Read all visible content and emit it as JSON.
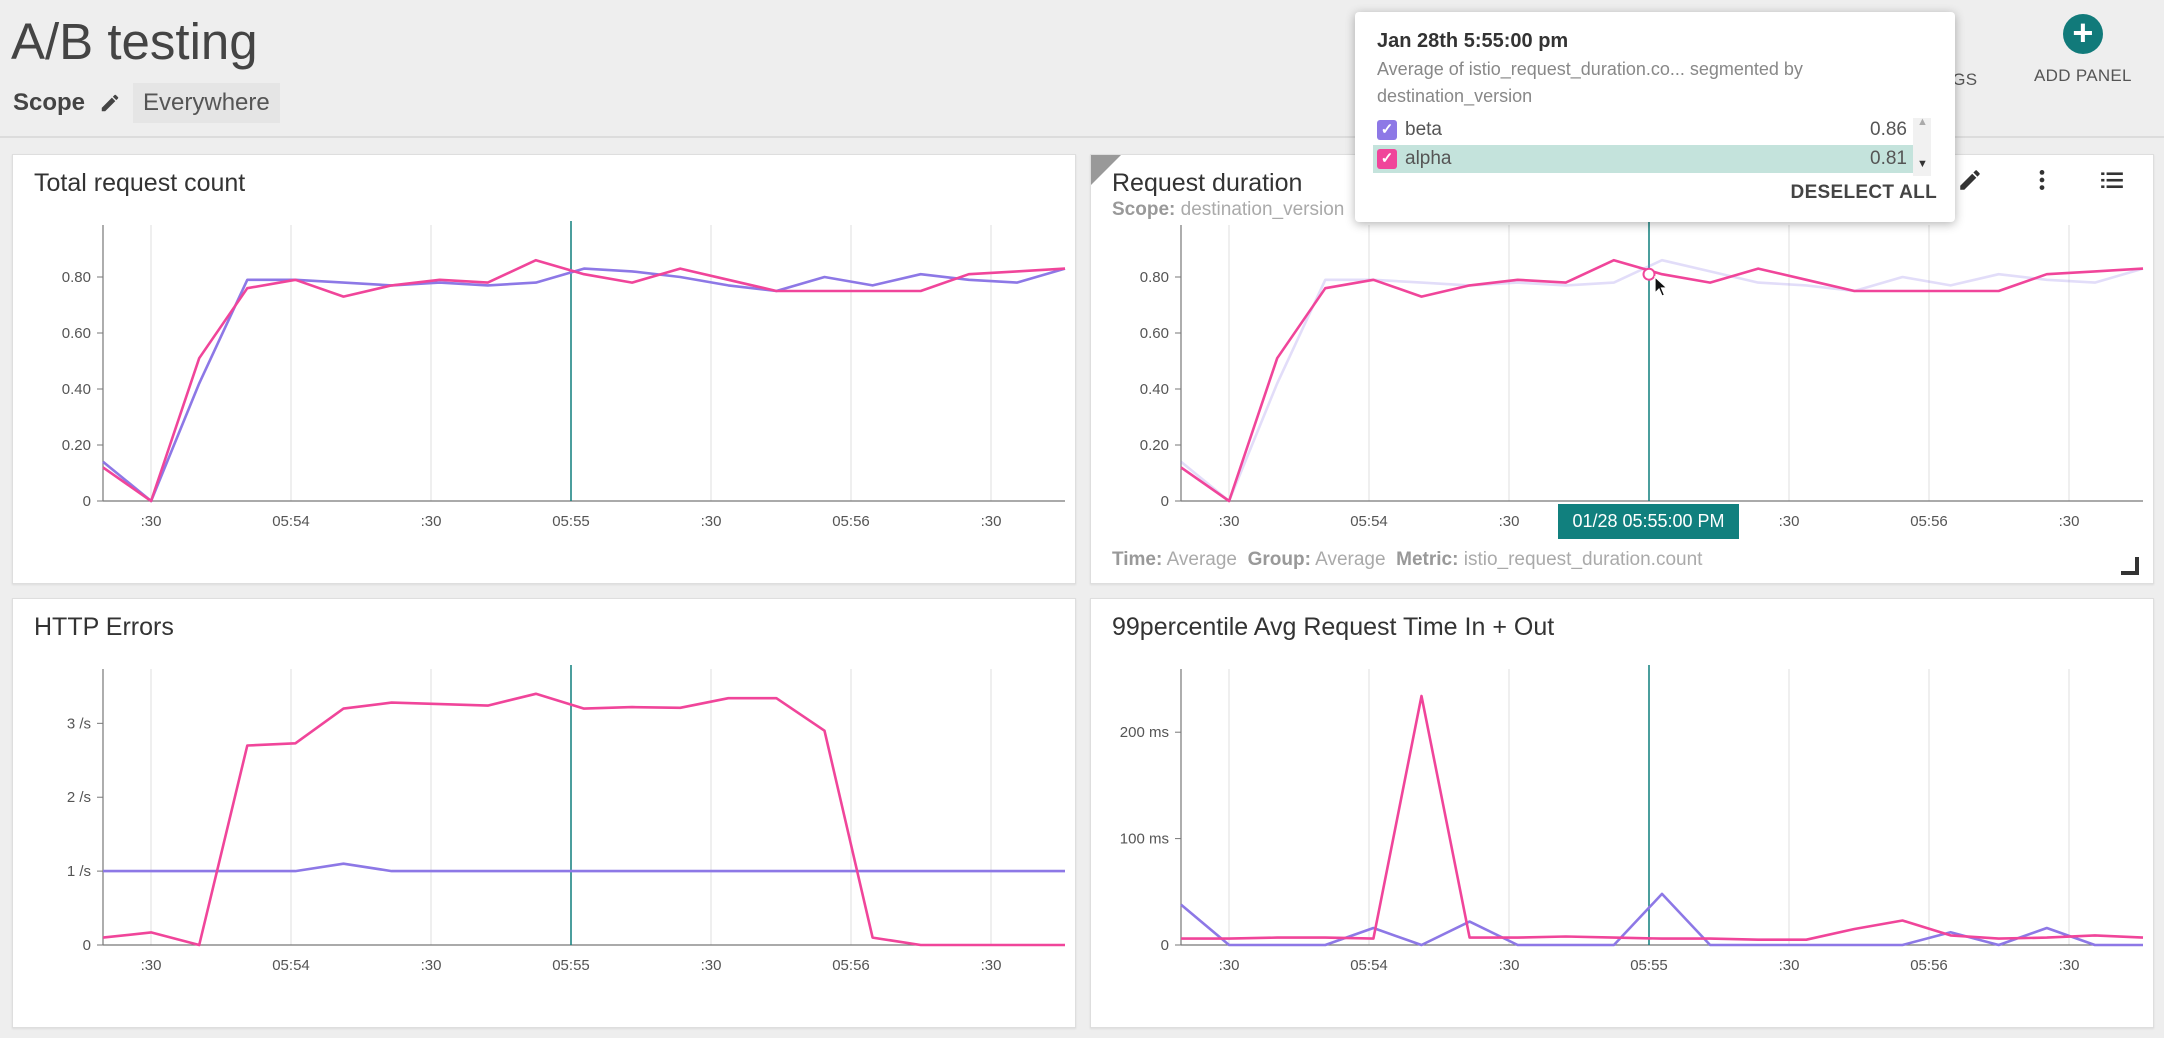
{
  "header": {
    "title": "A/B testing",
    "scope_label": "Scope",
    "scope_value": "Everywhere",
    "settings_label": "SETTINGS",
    "add_panel_label": "ADD PANEL",
    "add_icon": "+"
  },
  "colors": {
    "alpha": "#f0459a",
    "beta": "#8d78e6",
    "accent": "#117a7a",
    "crosshair": "#11807e"
  },
  "panels": {
    "total": {
      "title": "Total request count"
    },
    "duration": {
      "title": "Request duration",
      "scope_label": "Scope:",
      "scope_value": "destination_version",
      "time_label": "Time:",
      "time_value": "Average",
      "group_label": "Group:",
      "group_value": "Average",
      "metric_label": "Metric:",
      "metric_value": "istio_request_duration.count",
      "time_badge": "01/28 05:55:00 PM"
    },
    "errors": {
      "title": "HTTP Errors"
    },
    "p99": {
      "title": "99percentile Avg Request Time In + Out"
    }
  },
  "tooltip": {
    "title": "Jan 28th 5:55:00 pm",
    "description": "Average of istio_request_duration.co... segmented by destination_version",
    "rows": [
      {
        "name": "beta",
        "value": "0.86"
      },
      {
        "name": "alpha",
        "value": "0.81"
      }
    ],
    "check_mark": "✓",
    "scroll_up": "▲",
    "scroll_down": "▼",
    "deselect_label": "DESELECT ALL"
  },
  "chart_data": [
    {
      "type": "line",
      "title": "Total request count",
      "x_ticks": [
        ":30",
        "05:54",
        ":30",
        "05:55",
        ":30",
        "05:56",
        ":30"
      ],
      "y_ticks": [
        "0",
        "0.20",
        "0.40",
        "0.60",
        "0.80"
      ],
      "ylim": [
        0,
        0.95
      ],
      "series": [
        {
          "name": "alpha",
          "values": [
            0.12,
            0,
            0.51,
            0.76,
            0.79,
            0.73,
            0.77,
            0.79,
            0.78,
            0.86,
            0.81,
            0.78,
            0.83,
            0.79,
            0.75,
            0.75,
            0.75,
            0.75,
            0.81,
            0.82,
            0.83
          ]
        },
        {
          "name": "beta",
          "values": [
            0.14,
            0,
            0.42,
            0.79,
            0.79,
            0.78,
            0.77,
            0.78,
            0.77,
            0.78,
            0.83,
            0.82,
            0.8,
            0.77,
            0.75,
            0.8,
            0.77,
            0.81,
            0.79,
            0.78,
            0.83
          ]
        }
      ]
    },
    {
      "type": "line",
      "title": "Request duration",
      "x_ticks": [
        ":30",
        "05:54",
        ":30",
        "05:55",
        ":30",
        "05:56",
        ":30"
      ],
      "y_ticks": [
        "0",
        "0.20",
        "0.40",
        "0.60",
        "0.80"
      ],
      "ylim": [
        0,
        0.95
      ],
      "series": [
        {
          "name": "alpha",
          "values": [
            0.12,
            0,
            0.51,
            0.76,
            0.79,
            0.73,
            0.77,
            0.79,
            0.78,
            0.86,
            0.81,
            0.78,
            0.83,
            0.79,
            0.75,
            0.75,
            0.75,
            0.75,
            0.81,
            0.82,
            0.83
          ]
        },
        {
          "name": "beta",
          "values": [
            0.14,
            0,
            0.42,
            0.79,
            0.79,
            0.78,
            0.77,
            0.78,
            0.77,
            0.78,
            0.86,
            0.82,
            0.78,
            0.77,
            0.75,
            0.8,
            0.77,
            0.81,
            0.79,
            0.78,
            0.83
          ]
        }
      ]
    },
    {
      "type": "line",
      "title": "HTTP Errors",
      "x_ticks": [
        ":30",
        "05:54",
        ":30",
        "05:55",
        ":30",
        "05:56",
        ":30"
      ],
      "y_ticks": [
        "0",
        "1 /s",
        "2 /s",
        "3 /s"
      ],
      "ylim": [
        0,
        3.6
      ],
      "series": [
        {
          "name": "alpha",
          "values": [
            0.1,
            0.17,
            0,
            2.7,
            2.73,
            3.2,
            3.28,
            3.26,
            3.24,
            3.4,
            3.2,
            3.22,
            3.21,
            3.34,
            3.34,
            2.9,
            0.1,
            0,
            0,
            0,
            0
          ]
        },
        {
          "name": "beta",
          "values": [
            1,
            1,
            1,
            1,
            1,
            1.1,
            1,
            1,
            1,
            1,
            1,
            1,
            1,
            1,
            1,
            1,
            1,
            1,
            1,
            1,
            1
          ]
        }
      ]
    },
    {
      "type": "line",
      "title": "99percentile Avg Request Time In + Out",
      "x_ticks": [
        ":30",
        "05:54",
        ":30",
        "05:55",
        ":30",
        "05:56",
        ":30"
      ],
      "y_ticks": [
        "0",
        "100 ms",
        "200 ms"
      ],
      "ylim": [
        0,
        250
      ],
      "series": [
        {
          "name": "alpha",
          "values": [
            6,
            6,
            7,
            7,
            6,
            234,
            7,
            7,
            8,
            7,
            6,
            6,
            5,
            5,
            15,
            23,
            9,
            6,
            7,
            9,
            7
          ]
        },
        {
          "name": "beta",
          "values": [
            38,
            0,
            0,
            0,
            16,
            0,
            22,
            0,
            0,
            0,
            48,
            0,
            0,
            0,
            0,
            0,
            12,
            0,
            16,
            0,
            0
          ]
        }
      ]
    }
  ]
}
